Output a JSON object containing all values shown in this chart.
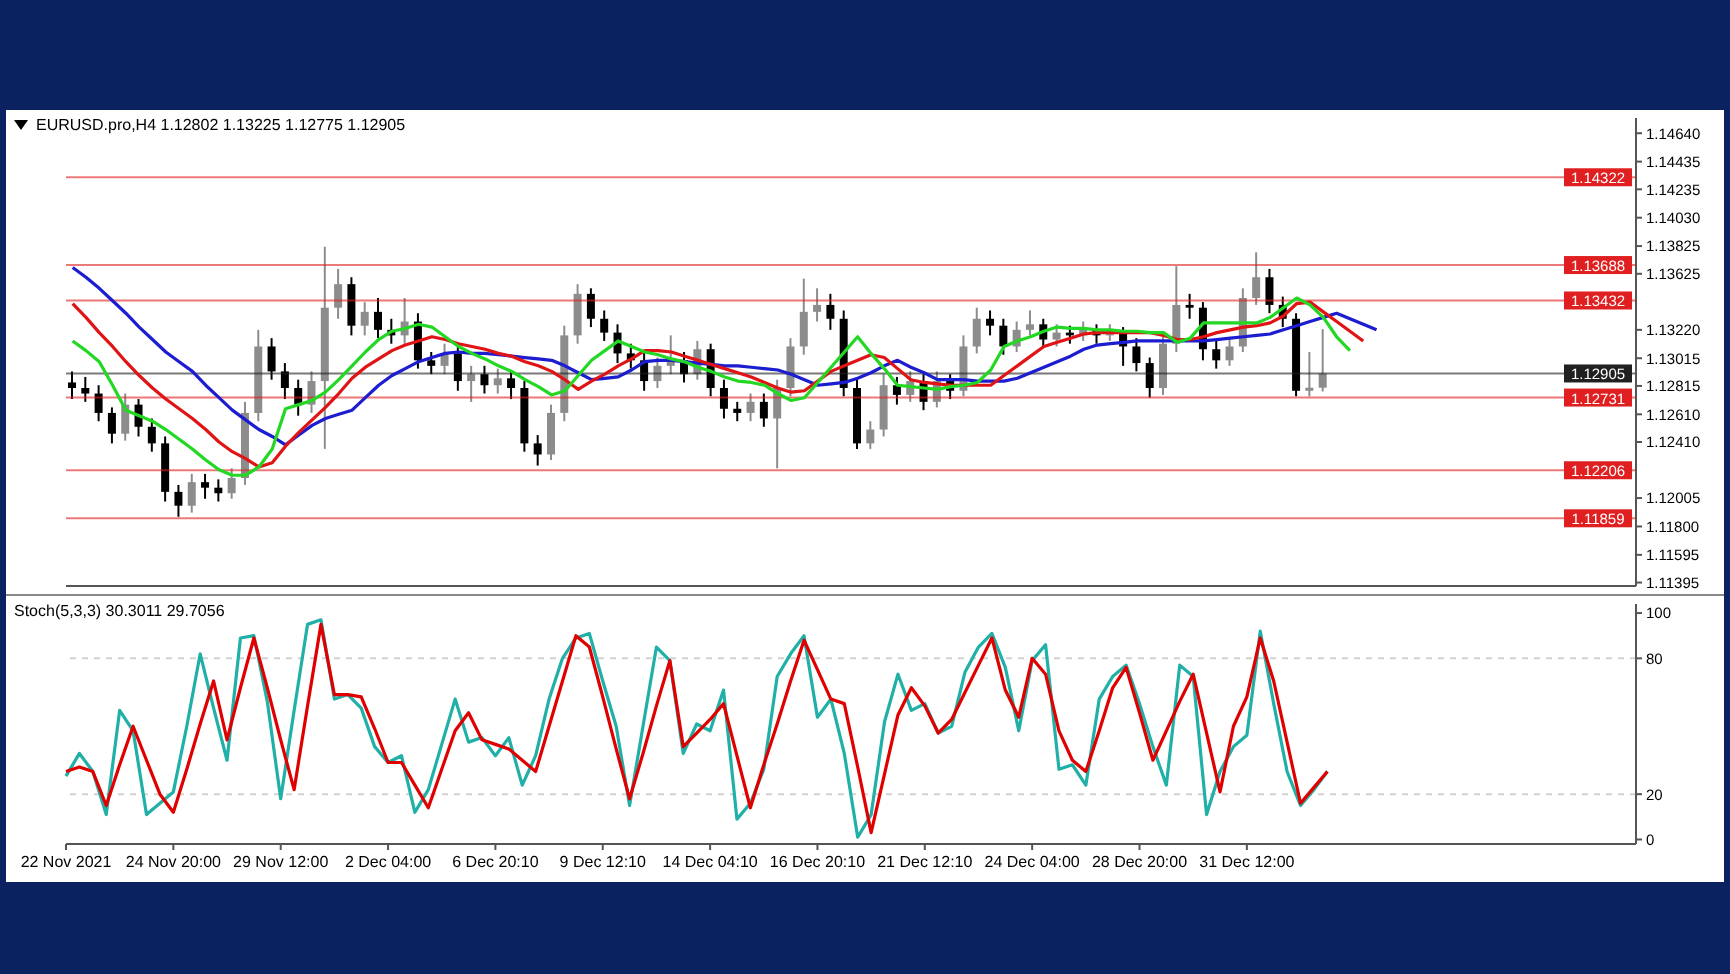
{
  "chart_data": [
    {
      "type": "candlestick",
      "title": "EURUSD.pro,H4 1.12802 1.13225 1.12775 1.12905",
      "tick_labels": "y",
      "ylim": [
        1.1137,
        1.1475
      ],
      "categories": [
        null,
        null,
        null,
        null,
        null,
        null,
        null,
        null,
        null,
        null,
        null,
        null,
        null,
        null,
        null,
        null,
        null,
        null,
        null,
        null,
        null,
        null,
        null,
        null,
        null,
        null,
        null,
        null,
        null,
        null,
        null,
        null,
        null,
        null,
        null,
        null,
        null,
        null,
        null,
        null,
        null,
        null,
        null,
        null,
        null,
        null,
        null,
        null,
        null,
        null,
        null,
        null,
        null,
        null,
        null,
        null,
        null,
        null,
        null,
        null,
        null,
        null,
        null,
        null,
        null,
        null,
        null,
        null,
        null,
        null,
        null,
        null,
        null,
        null,
        null,
        null,
        null,
        null,
        null,
        null,
        null,
        null,
        null,
        null,
        null,
        null,
        null,
        null,
        null,
        null,
        null,
        null,
        null,
        null,
        null,
        null,
        null,
        null,
        null,
        null,
        null,
        null,
        null,
        null,
        null,
        null,
        null,
        null,
        null,
        null,
        null,
        null,
        null,
        null,
        null,
        null,
        null,
        null
      ],
      "yticks": [
        {
          "value": 1.1464,
          "label": "1.14640"
        },
        {
          "value": 1.14435,
          "label": "1.14435"
        },
        {
          "value": 1.14235,
          "label": "1.14235"
        },
        {
          "value": 1.1403,
          "label": "1.14030"
        },
        {
          "value": 1.13825,
          "label": "1.13825"
        },
        {
          "value": 1.13625,
          "label": "1.13625"
        },
        {
          "value": 1.1322,
          "label": "1.13220"
        },
        {
          "value": 1.13015,
          "label": "1.13015"
        },
        {
          "value": 1.12815,
          "label": "1.12815"
        },
        {
          "value": 1.1261,
          "label": "1.12610"
        },
        {
          "value": 1.1241,
          "label": "1.12410"
        },
        {
          "value": 1.12005,
          "label": "1.12005"
        },
        {
          "value": 1.118,
          "label": "1.11800"
        },
        {
          "value": 1.11595,
          "label": "1.11595"
        },
        {
          "value": 1.11395,
          "label": "1.11395"
        }
      ],
      "ref_lines": [
        {
          "axis": "y",
          "value": 1.14322,
          "label": "1.14322",
          "color": "#e02020"
        },
        {
          "axis": "y",
          "value": 1.13688,
          "label": "1.13688",
          "color": "#e02020"
        },
        {
          "axis": "y",
          "value": 1.13432,
          "label": "1.13432",
          "color": "#e02020"
        },
        {
          "axis": "y",
          "value": 1.12905,
          "label": "1.12905",
          "color": "#202020"
        },
        {
          "axis": "y",
          "value": 1.12731,
          "label": "1.12731",
          "color": "#e02020"
        },
        {
          "axis": "y",
          "value": 1.12206,
          "label": "1.12206",
          "color": "#e02020"
        },
        {
          "axis": "y",
          "value": 1.11859,
          "label": "1.11859",
          "color": "#e02020"
        }
      ],
      "series": [
        {
          "type": "candlestick",
          "ohlc": [
            [
              1.1284,
              1.1292,
              1.1272,
              1.128
            ],
            [
              1.128,
              1.1288,
              1.127,
              1.1276
            ],
            [
              1.1276,
              1.1282,
              1.1256,
              1.1262
            ],
            [
              1.1262,
              1.1266,
              1.124,
              1.1247
            ],
            [
              1.1247,
              1.1276,
              1.1242,
              1.1268
            ],
            [
              1.1268,
              1.1272,
              1.1245,
              1.1252
            ],
            [
              1.1252,
              1.1258,
              1.1234,
              1.124
            ],
            [
              1.124,
              1.1245,
              1.1198,
              1.1205
            ],
            [
              1.1205,
              1.121,
              1.1187,
              1.1195
            ],
            [
              1.1195,
              1.1218,
              1.119,
              1.1212
            ],
            [
              1.1212,
              1.1218,
              1.12,
              1.1208
            ],
            [
              1.1208,
              1.1214,
              1.1198,
              1.1204
            ],
            [
              1.1204,
              1.1222,
              1.12,
              1.1215
            ],
            [
              1.1215,
              1.127,
              1.121,
              1.1262
            ],
            [
              1.1262,
              1.1322,
              1.1256,
              1.131
            ],
            [
              1.131,
              1.1316,
              1.1286,
              1.1292
            ],
            [
              1.1292,
              1.1298,
              1.1272,
              1.128
            ],
            [
              1.128,
              1.1286,
              1.126,
              1.1268
            ],
            [
              1.1268,
              1.1292,
              1.1262,
              1.1285
            ],
            [
              1.1285,
              1.1382,
              1.1236,
              1.1338
            ],
            [
              1.1338,
              1.1366,
              1.133,
              1.1355
            ],
            [
              1.1355,
              1.136,
              1.1318,
              1.1325
            ],
            [
              1.1325,
              1.1342,
              1.1318,
              1.1335
            ],
            [
              1.1335,
              1.1345,
              1.1316,
              1.1322
            ],
            [
              1.1322,
              1.133,
              1.1312,
              1.1318
            ],
            [
              1.1318,
              1.1345,
              1.1312,
              1.1328
            ],
            [
              1.1328,
              1.1334,
              1.1294,
              1.13
            ],
            [
              1.13,
              1.1306,
              1.129,
              1.1296
            ],
            [
              1.1296,
              1.1312,
              1.129,
              1.1305
            ],
            [
              1.1305,
              1.131,
              1.1278,
              1.1285
            ],
            [
              1.1285,
              1.1296,
              1.127,
              1.129
            ],
            [
              1.129,
              1.1296,
              1.1276,
              1.1282
            ],
            [
              1.1282,
              1.1294,
              1.1276,
              1.1287
            ],
            [
              1.1287,
              1.1292,
              1.1272,
              1.128
            ],
            [
              1.128,
              1.1285,
              1.1234,
              1.124
            ],
            [
              1.124,
              1.1246,
              1.1224,
              1.1232
            ],
            [
              1.1232,
              1.1268,
              1.1228,
              1.1262
            ],
            [
              1.1262,
              1.1325,
              1.1256,
              1.1318
            ],
            [
              1.1318,
              1.1355,
              1.1312,
              1.1348
            ],
            [
              1.1348,
              1.1352,
              1.1324,
              1.133
            ],
            [
              1.133,
              1.1336,
              1.1314,
              1.132
            ],
            [
              1.132,
              1.1326,
              1.1298,
              1.1305
            ],
            [
              1.1305,
              1.1312,
              1.1294,
              1.13
            ],
            [
              1.13,
              1.1306,
              1.1278,
              1.1285
            ],
            [
              1.1285,
              1.1302,
              1.128,
              1.1296
            ],
            [
              1.1296,
              1.1318,
              1.129,
              1.13
            ],
            [
              1.13,
              1.1306,
              1.1284,
              1.129
            ],
            [
              1.129,
              1.1314,
              1.1286,
              1.1308
            ],
            [
              1.1308,
              1.1312,
              1.1274,
              1.128
            ],
            [
              1.128,
              1.1286,
              1.1258,
              1.1265
            ],
            [
              1.1265,
              1.127,
              1.1256,
              1.1262
            ],
            [
              1.1262,
              1.1276,
              1.1256,
              1.127
            ],
            [
              1.127,
              1.1276,
              1.1252,
              1.1258
            ],
            [
              1.1258,
              1.1286,
              1.1222,
              1.128
            ],
            [
              1.128,
              1.1316,
              1.1274,
              1.131
            ],
            [
              1.131,
              1.1359,
              1.1304,
              1.1335
            ],
            [
              1.1335,
              1.1352,
              1.1328,
              1.134
            ],
            [
              1.134,
              1.1348,
              1.1322,
              1.133
            ],
            [
              1.133,
              1.1336,
              1.1274,
              1.128
            ],
            [
              1.128,
              1.1286,
              1.1236,
              1.124
            ],
            [
              1.124,
              1.1256,
              1.1236,
              1.125
            ],
            [
              1.125,
              1.129,
              1.1245,
              1.1282
            ],
            [
              1.1282,
              1.1288,
              1.1268,
              1.1275
            ],
            [
              1.1275,
              1.1292,
              1.127,
              1.1285
            ],
            [
              1.1285,
              1.129,
              1.1264,
              1.127
            ],
            [
              1.127,
              1.1292,
              1.1266,
              1.1285
            ],
            [
              1.1285,
              1.129,
              1.1272,
              1.1278
            ],
            [
              1.1278,
              1.1318,
              1.1274,
              1.131
            ],
            [
              1.131,
              1.1338,
              1.1305,
              1.133
            ],
            [
              1.133,
              1.1336,
              1.1318,
              1.1325
            ],
            [
              1.1325,
              1.133,
              1.1304,
              1.131
            ],
            [
              1.131,
              1.1328,
              1.1306,
              1.1322
            ],
            [
              1.1322,
              1.1336,
              1.1318,
              1.1326
            ],
            [
              1.1326,
              1.133,
              1.131,
              1.1315
            ],
            [
              1.1315,
              1.1326,
              1.131,
              1.132
            ],
            [
              1.132,
              1.1325,
              1.1312,
              1.1318
            ],
            [
              1.1318,
              1.1328,
              1.1314,
              1.1322
            ],
            [
              1.1322,
              1.1326,
              1.1312,
              1.1318
            ],
            [
              1.1318,
              1.1326,
              1.1314,
              1.132
            ],
            [
              1.132,
              1.1324,
              1.1296,
              1.131
            ],
            [
              1.131,
              1.1316,
              1.1292,
              1.1298
            ],
            [
              1.1298,
              1.1302,
              1.1273,
              1.128
            ],
            [
              1.128,
              1.1318,
              1.1275,
              1.1312
            ],
            [
              1.1312,
              1.1368,
              1.1306,
              1.134
            ],
            [
              1.134,
              1.1348,
              1.133,
              1.1338
            ],
            [
              1.1338,
              1.1342,
              1.13,
              1.1308
            ],
            [
              1.1308,
              1.1314,
              1.1294,
              1.13
            ],
            [
              1.13,
              1.1316,
              1.1296,
              1.131
            ],
            [
              1.131,
              1.1352,
              1.1306,
              1.1345
            ],
            [
              1.1345,
              1.1378,
              1.134,
              1.136
            ],
            [
              1.136,
              1.1366,
              1.1334,
              1.134
            ],
            [
              1.134,
              1.1346,
              1.1324,
              1.133
            ],
            [
              1.133,
              1.1334,
              1.1274,
              1.1278
            ],
            [
              1.1278,
              1.1306,
              1.1274,
              1.12802
            ],
            [
              1.12802,
              1.13225,
              1.12775,
              1.12905
            ],
            null,
            null,
            null,
            null,
            null,
            null,
            null,
            null,
            null,
            null,
            null,
            null,
            null,
            null,
            null,
            null,
            null,
            null,
            null,
            null,
            null,
            null,
            null
          ],
          "colors": [
            "#000000",
            "#000000",
            "#000000",
            "#000000",
            "#8c8c8c",
            "#000000",
            "#000000",
            "#000000",
            "#000000",
            "#8c8c8c",
            "#000000",
            "#000000",
            "#8c8c8c",
            "#8c8c8c",
            "#8c8c8c",
            "#000000",
            "#000000",
            "#000000",
            "#8c8c8c",
            "#8c8c8c",
            "#8c8c8c",
            "#000000",
            "#8c8c8c",
            "#000000",
            "#000000",
            "#8c8c8c",
            "#000000",
            "#000000",
            "#8c8c8c",
            "#000000",
            "#8c8c8c",
            "#000000",
            "#8c8c8c",
            "#000000",
            "#000000",
            "#000000",
            "#8c8c8c",
            "#8c8c8c",
            "#8c8c8c",
            "#000000",
            "#000000",
            "#000000",
            "#000000",
            "#000000",
            "#8c8c8c",
            "#8c8c8c",
            "#000000",
            "#8c8c8c",
            "#000000",
            "#000000",
            "#000000",
            "#8c8c8c",
            "#000000",
            "#8c8c8c",
            "#8c8c8c",
            "#8c8c8c",
            "#8c8c8c",
            "#000000",
            "#000000",
            "#000000",
            "#8c8c8c",
            "#8c8c8c",
            "#000000",
            "#8c8c8c",
            "#000000",
            "#8c8c8c",
            "#000000",
            "#8c8c8c",
            "#8c8c8c",
            "#000000",
            "#000000",
            "#8c8c8c",
            "#8c8c8c",
            "#000000",
            "#8c8c8c",
            "#000000",
            "#8c8c8c",
            "#000000",
            "#8c8c8c",
            "#000000",
            "#000000",
            "#000000",
            "#8c8c8c",
            "#8c8c8c",
            "#000000",
            "#000000",
            "#000000",
            "#8c8c8c",
            "#8c8c8c",
            "#8c8c8c",
            "#000000",
            "#000000",
            "#000000",
            "#8c8c8c",
            "#8c8c8c",
            null,
            null,
            null,
            null,
            null,
            null,
            null,
            null,
            null,
            null,
            null,
            null,
            null,
            null,
            null,
            null,
            null,
            null,
            null,
            null,
            null,
            null,
            null
          ]
        },
        {
          "type": "line",
          "color": "#1c1cd0",
          "values": [
            1.1367,
            1.136,
            1.1352,
            1.1343,
            1.1334,
            1.1324,
            1.1315,
            1.1306,
            1.1299,
            1.1292,
            1.1282,
            1.1273,
            1.1264,
            1.1257,
            1.125,
            1.1245,
            1.1239,
            1.1246,
            1.1253,
            1.1258,
            1.1261,
            1.1264,
            1.1273,
            1.1282,
            1.1289,
            1.1294,
            1.1299,
            1.1302,
            1.1305,
            1.1306,
            1.1305,
            1.1305,
            1.1304,
            1.1303,
            1.1302,
            1.1301,
            1.13,
            1.1296,
            1.1291,
            1.1286,
            1.1287,
            1.1288,
            1.1293,
            1.1299,
            1.13,
            1.13,
            1.1299,
            1.1298,
            1.1297,
            1.1296,
            1.1296,
            1.1295,
            1.1294,
            1.1293,
            1.129,
            1.1286,
            1.1282,
            1.1283,
            1.1284,
            1.1287,
            1.1291,
            1.1296,
            1.13,
            1.1295,
            1.1291,
            1.1286,
            1.1286,
            1.1286,
            1.1285,
            1.1285,
            1.1285,
            1.1287,
            1.1291,
            1.1295,
            1.1299,
            1.1303,
            1.1308,
            1.1311,
            1.1312,
            1.1313,
            1.1314,
            1.1314,
            1.1314,
            1.1314,
            1.1314,
            1.1314,
            1.1315,
            1.1316,
            1.1317,
            1.1318,
            1.1319,
            1.1322,
            1.1325,
            1.1328,
            1.1331,
            1.1334,
            1.133,
            1.1326,
            1.1322,
            null,
            null,
            null,
            null,
            null,
            null,
            null,
            null,
            null,
            null,
            null,
            null,
            null,
            null,
            null,
            null,
            null,
            null,
            null
          ]
        },
        {
          "type": "line",
          "color": "#e01414",
          "values": [
            1.1341,
            1.1331,
            1.132,
            1.131,
            1.1299,
            1.1289,
            1.128,
            1.1272,
            1.1265,
            1.1258,
            1.125,
            1.1241,
            1.1234,
            1.1229,
            1.1223,
            1.1226,
            1.1238,
            1.1248,
            1.1257,
            1.1266,
            1.1276,
            1.1287,
            1.1295,
            1.1301,
            1.1307,
            1.1311,
            1.1314,
            1.1317,
            1.1315,
            1.1312,
            1.131,
            1.1308,
            1.1305,
            1.1303,
            1.1299,
            1.1296,
            1.1292,
            1.1286,
            1.1279,
            1.1285,
            1.129,
            1.1296,
            1.1301,
            1.1307,
            1.1307,
            1.1306,
            1.1303,
            1.13,
            1.1297,
            1.1294,
            1.1291,
            1.1288,
            1.1284,
            1.128,
            1.1277,
            1.1278,
            1.1285,
            1.1292,
            1.1296,
            1.13,
            1.1304,
            1.1302,
            1.1294,
            1.1286,
            1.1284,
            1.1283,
            1.1282,
            1.1282,
            1.1282,
            1.1282,
            1.1289,
            1.1296,
            1.1303,
            1.131,
            1.1313,
            1.1316,
            1.1319,
            1.132,
            1.132,
            1.132,
            1.132,
            1.132,
            1.1318,
            1.1315,
            1.1315,
            1.1317,
            1.132,
            1.1322,
            1.1324,
            1.1325,
            1.1327,
            1.1332,
            1.1341,
            1.1342,
            1.1335,
            1.1328,
            1.1321,
            1.1314,
            null,
            null,
            null,
            null,
            null,
            null,
            null,
            null,
            null,
            null,
            null,
            null,
            null,
            null,
            null,
            null,
            null,
            null,
            null,
            null
          ]
        },
        {
          "type": "line",
          "color": "#22d822",
          "values": [
            1.1314,
            1.1307,
            1.1299,
            1.1282,
            1.1264,
            1.126,
            1.1256,
            1.125,
            1.1243,
            1.1236,
            1.1228,
            1.1221,
            1.1217,
            1.1217,
            1.1223,
            1.1236,
            1.1265,
            1.1268,
            1.1271,
            1.1277,
            1.1286,
            1.1296,
            1.1306,
            1.1315,
            1.1321,
            1.1323,
            1.1326,
            1.1324,
            1.1317,
            1.131,
            1.1305,
            1.1301,
            1.1296,
            1.1292,
            1.1286,
            1.1281,
            1.1275,
            1.1278,
            1.1289,
            1.13,
            1.1307,
            1.1314,
            1.131,
            1.1306,
            1.1304,
            1.1301,
            1.1299,
            1.1295,
            1.1292,
            1.1288,
            1.1285,
            1.1284,
            1.1282,
            1.1276,
            1.1271,
            1.1273,
            1.1284,
            1.1295,
            1.1306,
            1.1317,
            1.1305,
            1.1294,
            1.1282,
            1.1281,
            1.128,
            1.1279,
            1.1281,
            1.1282,
            1.1284,
            1.1293,
            1.131,
            1.1314,
            1.1317,
            1.1321,
            1.1324,
            1.1323,
            1.1323,
            1.1322,
            1.1322,
            1.1321,
            1.1321,
            1.132,
            1.132,
            1.1313,
            1.1316,
            1.1327,
            1.1327,
            1.1327,
            1.1327,
            1.1327,
            1.1331,
            1.1338,
            1.1345,
            1.134,
            1.1331,
            1.1317,
            1.1307,
            null,
            null,
            null,
            null,
            null,
            null,
            null,
            null,
            null,
            null,
            null,
            null,
            null,
            null,
            null,
            null,
            null,
            null,
            null,
            null,
            null
          ]
        }
      ]
    },
    {
      "type": "line",
      "title": "Stoch(5,3,3) 30.3011 29.7056",
      "ylim": [
        -2,
        104
      ],
      "yticks": [
        0,
        20,
        80,
        100
      ],
      "categories": [
        "22 Nov 2021",
        null,
        null,
        null,
        null,
        null,
        null,
        null,
        "24 Nov 20:00",
        null,
        null,
        null,
        null,
        null,
        null,
        null,
        "29 Nov 12:00",
        null,
        null,
        null,
        null,
        null,
        null,
        null,
        "2 Dec 04:00",
        null,
        null,
        null,
        null,
        null,
        null,
        null,
        "6 Dec 20:10",
        null,
        null,
        null,
        null,
        null,
        null,
        null,
        "9 Dec 12:10",
        null,
        null,
        null,
        null,
        null,
        null,
        null,
        "14 Dec 04:10",
        null,
        null,
        null,
        null,
        null,
        null,
        null,
        "16 Dec 20:10",
        null,
        null,
        null,
        null,
        null,
        null,
        null,
        "21 Dec 12:10",
        null,
        null,
        null,
        null,
        null,
        null,
        null,
        "24 Dec 04:00",
        null,
        null,
        null,
        null,
        null,
        null,
        null,
        "28 Dec 20:00",
        null,
        null,
        null,
        null,
        null,
        null,
        null,
        "31 Dec 12:00",
        null,
        null,
        null,
        null,
        null,
        null,
        null,
        null,
        null,
        null,
        null,
        null,
        null,
        null,
        null,
        null,
        null,
        null,
        null,
        null,
        null,
        null,
        null,
        null,
        null,
        null,
        null,
        null,
        null
      ],
      "ref_lines": [
        {
          "axis": "y",
          "value": 80,
          "color": "#b4b4b4",
          "line_style": "dashed"
        },
        {
          "axis": "y",
          "value": 20,
          "color": "#b4b4b4",
          "line_style": "dashed"
        }
      ],
      "series": [
        {
          "type": "line",
          "color": "#20b0a8",
          "values": [
            28,
            38,
            30,
            11,
            57,
            48,
            11,
            16,
            21,
            50,
            82,
            58,
            35,
            89,
            90,
            61,
            18,
            57,
            95,
            97,
            62,
            64,
            58,
            41,
            34,
            37,
            12,
            22,
            42,
            62,
            43,
            45,
            37,
            45,
            24,
            37,
            62,
            80,
            89,
            91,
            70,
            50,
            15,
            50,
            85,
            79,
            38,
            51,
            48,
            66,
            9,
            16,
            31,
            72,
            82,
            90,
            54,
            62,
            38,
            1,
            11,
            52,
            73,
            57,
            60,
            47,
            50,
            74,
            85,
            91,
            76,
            48,
            79,
            86,
            31,
            33,
            24,
            62,
            72,
            77,
            60,
            41,
            24,
            77,
            72,
            11,
            30,
            41,
            46,
            92,
            60,
            30,
            15,
            22,
            30,
            null,
            null,
            null,
            null,
            null,
            null,
            null,
            null,
            null,
            null,
            null,
            null,
            null,
            null,
            null,
            null,
            null,
            null,
            null,
            null,
            null,
            null,
            null
          ]
        },
        {
          "type": "line",
          "color": "#e00000",
          "values": [
            30,
            32,
            30,
            15,
            33,
            50,
            35,
            20,
            12,
            31,
            51,
            70,
            44,
            67,
            89,
            67,
            44,
            22,
            59,
            95,
            64,
            64,
            63,
            49,
            34,
            34,
            24,
            14,
            31,
            48,
            56,
            44,
            42,
            40,
            35,
            30,
            50,
            70,
            90,
            85,
            63,
            40,
            18,
            38,
            59,
            79,
            41,
            47,
            53,
            60,
            37,
            14,
            33,
            51,
            70,
            88,
            75,
            62,
            60,
            32,
            3,
            29,
            55,
            67,
            59,
            47,
            53,
            65,
            77,
            89,
            66,
            54,
            80,
            73,
            48,
            35,
            30,
            48,
            67,
            76,
            56,
            35,
            48,
            61,
            73,
            47,
            21,
            50,
            63,
            89,
            70,
            43,
            16,
            23,
            30,
            null,
            null,
            null,
            null,
            null,
            null,
            null,
            null,
            null,
            null,
            null,
            null,
            null,
            null,
            null,
            null,
            null,
            null,
            null,
            null,
            null,
            null,
            null
          ]
        }
      ]
    }
  ]
}
